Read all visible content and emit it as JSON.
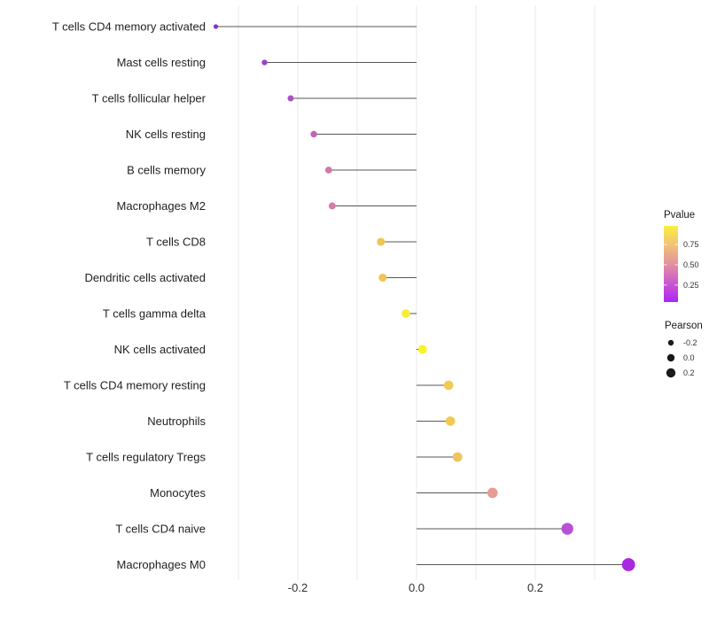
{
  "chart_data": {
    "type": "lollipop",
    "title": "",
    "xlabel": "",
    "ylabel": "",
    "xlim": [
      -0.375,
      0.392
    ],
    "grid": "vertical-only",
    "gridlines_x": [
      -0.3,
      -0.2,
      -0.1,
      0.0,
      0.1,
      0.2,
      0.3
    ],
    "x_ticks": [
      {
        "value": -0.2,
        "label": "-0.2"
      },
      {
        "value": 0.0,
        "label": "0.0"
      },
      {
        "value": 0.2,
        "label": "0.2"
      }
    ],
    "points": [
      {
        "category": "T cells CD4 memory activated",
        "pearson": -0.338,
        "pvalue": 0.05,
        "color": "#8a2fc9"
      },
      {
        "category": "Mast cells resting",
        "pearson": -0.256,
        "pvalue": 0.1,
        "color": "#9c40d0"
      },
      {
        "category": "T cells follicular helper",
        "pearson": -0.212,
        "pvalue": 0.18,
        "color": "#aa50c8"
      },
      {
        "category": "NK cells resting",
        "pearson": -0.173,
        "pvalue": 0.3,
        "color": "#c263b6"
      },
      {
        "category": "B cells memory",
        "pearson": -0.148,
        "pvalue": 0.4,
        "color": "#d378ab"
      },
      {
        "category": "Macrophages M2",
        "pearson": -0.142,
        "pvalue": 0.42,
        "color": "#d57ba5"
      },
      {
        "category": "T cells CD8",
        "pearson": -0.06,
        "pvalue": 0.72,
        "color": "#f0c455"
      },
      {
        "category": "Dendritic cells activated",
        "pearson": -0.057,
        "pvalue": 0.72,
        "color": "#f0c455"
      },
      {
        "category": "T cells gamma delta",
        "pearson": -0.018,
        "pvalue": 0.93,
        "color": "#f6ee33"
      },
      {
        "category": "NK cells activated",
        "pearson": 0.01,
        "pvalue": 0.96,
        "color": "#f8f22b"
      },
      {
        "category": "T cells CD4 memory resting",
        "pearson": 0.054,
        "pvalue": 0.78,
        "color": "#f1ca53"
      },
      {
        "category": "Neutrophils",
        "pearson": 0.057,
        "pvalue": 0.78,
        "color": "#f1ca53"
      },
      {
        "category": "T cells regulatory  Tregs",
        "pearson": 0.069,
        "pvalue": 0.73,
        "color": "#efc35d"
      },
      {
        "category": "Monocytes",
        "pearson": 0.128,
        "pvalue": 0.5,
        "color": "#e69b94"
      },
      {
        "category": "T cells CD4 naive",
        "pearson": 0.254,
        "pvalue": 0.18,
        "color": "#b94fd8"
      },
      {
        "category": "Macrophages M0",
        "pearson": 0.357,
        "pvalue": 0.02,
        "color": "#aa28e2"
      }
    ],
    "legend_position": "right",
    "legends": {
      "pvalue": {
        "title": "Pvalue",
        "ticks": [
          {
            "value": 0.75,
            "label": "0.75"
          },
          {
            "value": 0.5,
            "label": "0.50"
          },
          {
            "value": 0.25,
            "label": "0.25"
          }
        ],
        "bar_range": [
          0.04,
          0.98
        ],
        "gradient_top_to_bottom": [
          "#f9ee3f",
          "#f2c276",
          "#e2939e",
          "#cb59d0",
          "#ae25f4"
        ]
      },
      "pearson": {
        "title": "Pearson",
        "items": [
          {
            "label": "-0.2",
            "radius": 3.2
          },
          {
            "label": "0.0",
            "radius": 4.2
          },
          {
            "label": "0.2",
            "radius": 5.2
          }
        ],
        "dot_color": "#1a1a1a"
      }
    },
    "colors": {
      "gridline": "#e9e9e9",
      "segment": "#1f1f1f",
      "background": "#ffffff"
    }
  }
}
